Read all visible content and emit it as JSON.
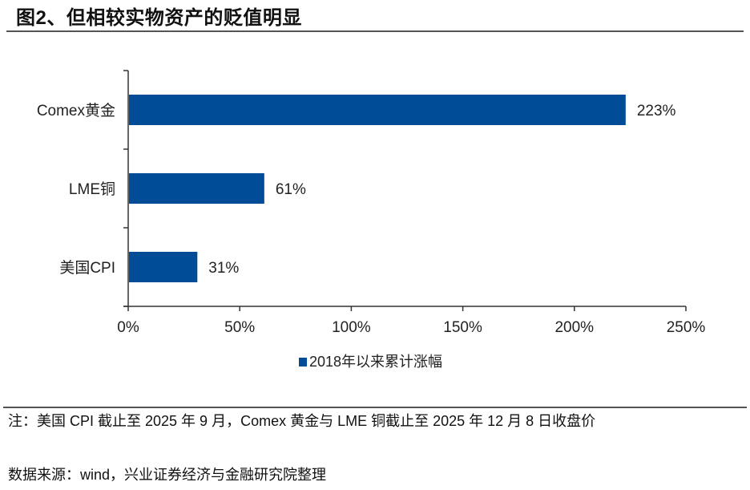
{
  "title": "图2、但相较实物资产的贬值明显",
  "note": "注：美国 CPI 截止至 2025 年 9 月，Comex 黄金与 LME 铜截止至 2025 年 12 月 8 日收盘价",
  "source": "数据来源：wind，兴业证券经济与金融研究院整理",
  "colors": {
    "bar": "#004C97",
    "axis": "#333333"
  },
  "chart_data": {
    "type": "bar",
    "orientation": "horizontal",
    "title": "图2、但相较实物资产的贬值明显",
    "categories": [
      "Comex黄金",
      "LME铜",
      "美国CPI"
    ],
    "series": [
      {
        "name": "2018年以来累计涨幅",
        "values": [
          223,
          61,
          31
        ],
        "labels": [
          "223%",
          "61%",
          "31%"
        ]
      }
    ],
    "xlim": [
      0,
      250
    ],
    "xticks": [
      0,
      50,
      100,
      150,
      200,
      250
    ],
    "xtick_labels": [
      "0%",
      "50%",
      "100%",
      "150%",
      "200%",
      "250%"
    ],
    "xlabel": "",
    "ylabel": "",
    "grid": false,
    "legend": {
      "position": "bottom-center",
      "entries": [
        "2018年以来累计涨幅"
      ]
    }
  }
}
